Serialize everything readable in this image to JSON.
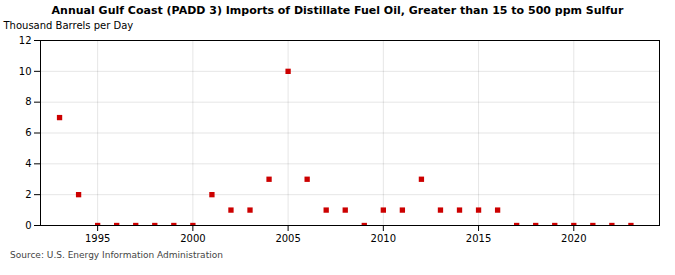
{
  "chart_data": {
    "type": "scatter",
    "title": "Annual Gulf Coast (PADD 3) Imports of Distillate Fuel Oil, Greater than 15 to 500 ppm Sulfur",
    "ylabel": "Thousand Barrels per Day",
    "source": "Source: U.S. Energy Information Administration",
    "x": [
      1993,
      1994,
      1995,
      1996,
      1997,
      1998,
      1999,
      2000,
      2001,
      2002,
      2003,
      2004,
      2005,
      2006,
      2007,
      2008,
      2009,
      2010,
      2011,
      2012,
      2013,
      2014,
      2015,
      2016,
      2017,
      2018,
      2019,
      2020,
      2021,
      2022,
      2023
    ],
    "values": [
      7,
      2,
      0,
      0,
      0,
      0,
      0,
      0,
      2,
      1,
      1,
      3,
      10,
      3,
      1,
      1,
      0,
      1,
      1,
      3,
      1,
      1,
      1,
      1,
      0,
      0,
      0,
      0,
      0,
      0,
      0
    ],
    "color": "#cc0000",
    "marker": "square",
    "xlim": [
      1992.0,
      2024.5
    ],
    "xticks": [
      1995,
      2000,
      2005,
      2010,
      2015,
      2020
    ],
    "ylim": [
      0,
      12
    ],
    "yticks": [
      0,
      2,
      4,
      6,
      8,
      10,
      12
    ],
    "grid": true
  }
}
